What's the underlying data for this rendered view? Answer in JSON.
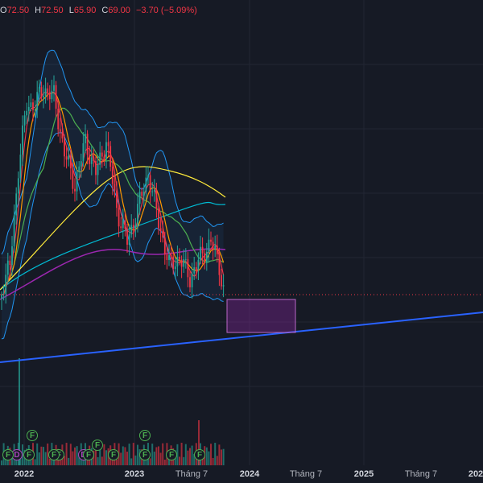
{
  "ohlc_legend": {
    "o_label": "O",
    "o_value": "72.50",
    "h_label": "H",
    "h_value": "72.50",
    "l_label": "L",
    "l_value": "65.90",
    "c_label": "C",
    "c_value": "69.00",
    "change": "−3.70 (−5.09%)"
  },
  "x_axis": {
    "ticks": [
      {
        "label": "2022",
        "major": true
      },
      {
        "label": "2023",
        "major": true
      },
      {
        "label": "Tháng 7",
        "major": false
      },
      {
        "label": "2024",
        "major": true
      },
      {
        "label": "Tháng 7",
        "major": false
      },
      {
        "label": "2025",
        "major": true
      },
      {
        "label": "Tháng 7",
        "major": false
      },
      {
        "label": "202",
        "major": true
      }
    ]
  },
  "events": [
    {
      "glyph": "F",
      "kind": "f"
    },
    {
      "glyph": "D",
      "kind": "d"
    },
    {
      "glyph": "F",
      "kind": "f"
    },
    {
      "glyph": "F",
      "kind": "f"
    },
    {
      "glyph": "F",
      "kind": "f"
    },
    {
      "glyph": "D",
      "kind": "d"
    },
    {
      "glyph": "F",
      "kind": "f"
    },
    {
      "glyph": "F",
      "kind": "f"
    },
    {
      "glyph": "F",
      "kind": "f"
    },
    {
      "glyph": "F",
      "kind": "f"
    },
    {
      "glyph": "F",
      "kind": "f"
    },
    {
      "glyph": "F",
      "kind": "f"
    },
    {
      "glyph": "F",
      "kind": "f"
    },
    {
      "glyph": "F",
      "kind": "f"
    }
  ],
  "colors": {
    "background": "#161a25",
    "up": "#26a69a",
    "down": "#f23645",
    "trendline": "#2962ff",
    "zone_fill": "#9c27b0",
    "bollinger": "#2196f3",
    "ma_orange": "#ff9800",
    "ma_yellow": "#ffeb3b",
    "ma_teal": "#00bcd4",
    "ma_purple": "#9c27b0",
    "ma_green": "#4caf50",
    "ma_red": "#f23645"
  },
  "chart_data": {
    "type": "candlestick",
    "last_close": 69.0
  }
}
